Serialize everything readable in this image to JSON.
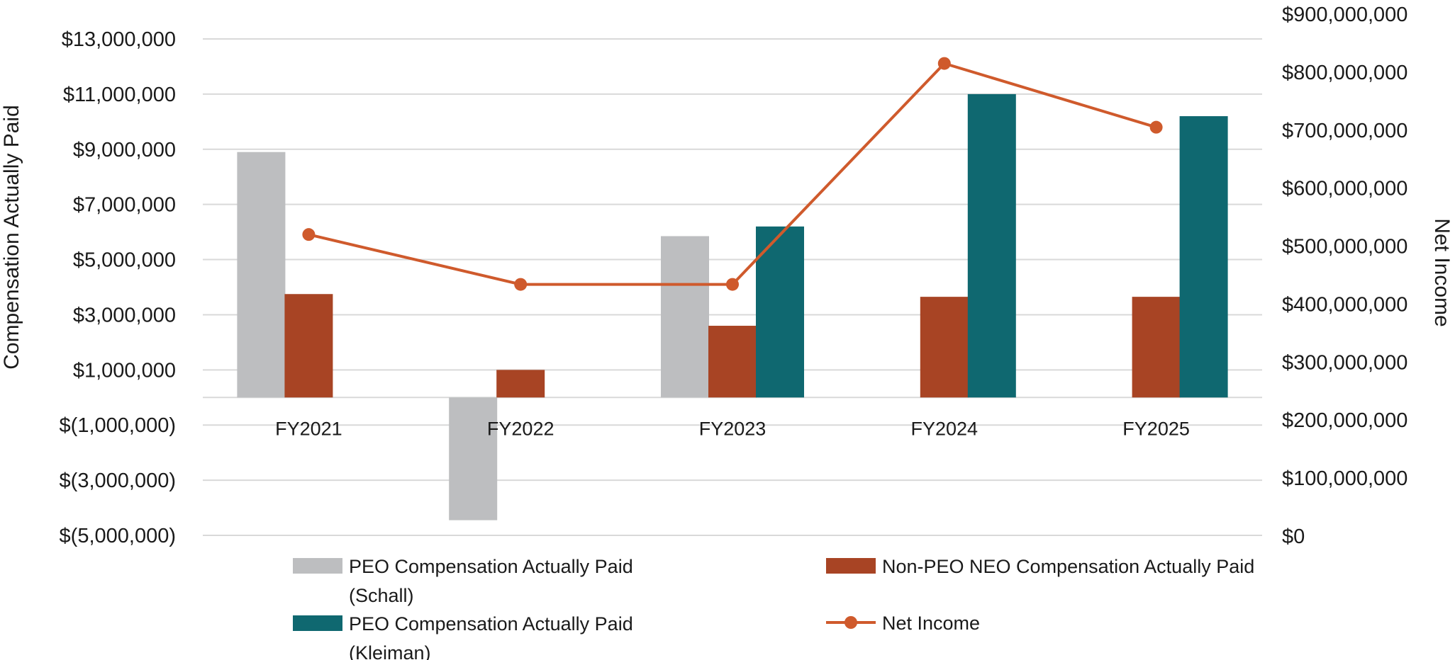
{
  "chart_data": {
    "type": "bar",
    "title": "",
    "categories": [
      "FY2021",
      "FY2022",
      "FY2023",
      "FY2024",
      "FY2025"
    ],
    "ylabel": "Compensation Actually Paid",
    "y2label": "Net Income",
    "ylim": [
      -5000000,
      13000000
    ],
    "y2lim": [
      0,
      900000000
    ],
    "yticks": [
      13000000,
      11000000,
      9000000,
      7000000,
      5000000,
      3000000,
      1000000,
      -1000000,
      -3000000,
      -5000000
    ],
    "ytick_labels": [
      "$13,000,000",
      "$11,000,000",
      "$9,000,000",
      "$7,000,000",
      "$5,000,000",
      "$3,000,000",
      "$1,000,000",
      "$(1,000,000)",
      "$(3,000,000)",
      "$(5,000,000)"
    ],
    "y2ticks": [
      900000000,
      800000000,
      700000000,
      600000000,
      500000000,
      400000000,
      300000000,
      200000000,
      100000000,
      0
    ],
    "y2tick_labels": [
      "$900,000,000",
      "$800,000,000",
      "$700,000,000",
      "$600,000,000",
      "$500,000,000",
      "$400,000,000",
      "$300,000,000",
      "$200,000,000",
      "$100,000,000",
      "$0"
    ],
    "grid": true,
    "legend_position": "bottom",
    "series": [
      {
        "name": "PEO Compensation Actually Paid (Schall)",
        "legend_lines": [
          "PEO Compensation Actually Paid",
          "(Schall)"
        ],
        "type": "bar",
        "axis": "left",
        "color": "#bdbec0",
        "values": [
          8900000,
          -4450000,
          5850000,
          null,
          null
        ]
      },
      {
        "name": "Non-PEO NEO Compensation Actually Paid",
        "legend_lines": [
          "Non-PEO NEO Compensation Actually Paid"
        ],
        "type": "bar",
        "axis": "left",
        "color": "#a84424",
        "values": [
          3750000,
          1000000,
          2600000,
          3650000,
          3650000
        ]
      },
      {
        "name": "PEO Compensation Actually Paid (Kleiman)",
        "legend_lines": [
          "PEO Compensation Actually Paid",
          "(Kleiman)"
        ],
        "type": "bar",
        "axis": "left",
        "color": "#0f6870",
        "values": [
          null,
          null,
          6200000,
          11000000,
          10200000
        ]
      },
      {
        "name": "Net Income",
        "legend_lines": [
          "Net Income"
        ],
        "type": "line",
        "axis": "right",
        "color": "#cf5a2c",
        "values": [
          520000000,
          434000000,
          434000000,
          815000000,
          705000000
        ]
      }
    ]
  }
}
